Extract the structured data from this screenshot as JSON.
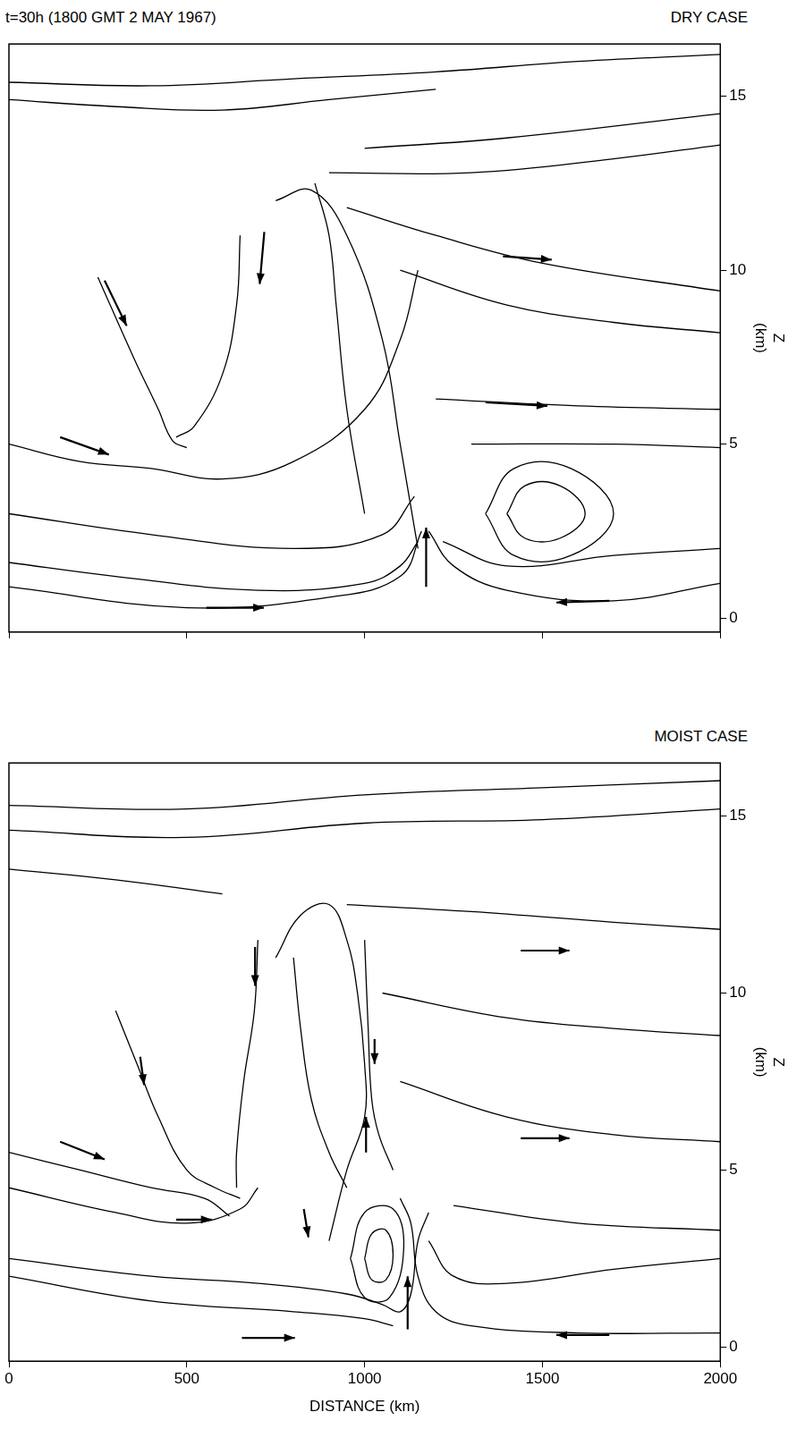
{
  "title": "t=30h  (1800 GMT  2 MAY 1967)",
  "chart_data": [
    {
      "type": "line",
      "title": "DRY CASE",
      "y_label": "Z (km)",
      "xlim": [
        0,
        2000
      ],
      "ylim": [
        -0.4,
        16.5
      ],
      "xticks": [
        0,
        500,
        1000,
        1500,
        2000
      ],
      "yticks": [
        0,
        5,
        10,
        15
      ],
      "tick_labels": "y",
      "grid": false,
      "color": "#000000",
      "streamlines": [
        [
          [
            0,
            15.4
          ],
          [
            400,
            15.3
          ],
          [
            800,
            15.5
          ],
          [
            1200,
            15.7
          ],
          [
            1600,
            16
          ],
          [
            2000,
            16.2
          ]
        ],
        [
          [
            0,
            14.9
          ],
          [
            300,
            14.7
          ],
          [
            600,
            14.6
          ],
          [
            900,
            14.9
          ],
          [
            1200,
            15.2
          ]
        ],
        [
          [
            1000,
            13.5
          ],
          [
            1400,
            13.8
          ],
          [
            2000,
            14.5
          ]
        ],
        [
          [
            900,
            12.8
          ],
          [
            1300,
            12.8
          ],
          [
            1700,
            13.2
          ],
          [
            2000,
            13.6
          ]
        ],
        [
          [
            950,
            11.8
          ],
          [
            1200,
            11
          ],
          [
            1500,
            10.2
          ],
          [
            2000,
            9.4
          ]
        ],
        [
          [
            1100,
            10
          ],
          [
            1400,
            9
          ],
          [
            1700,
            8.5
          ],
          [
            2000,
            8.2
          ]
        ],
        [
          [
            1200,
            6.3
          ],
          [
            1600,
            6.1
          ],
          [
            2000,
            6
          ]
        ],
        [
          [
            1300,
            5
          ],
          [
            1700,
            5
          ],
          [
            2000,
            4.9
          ]
        ],
        [
          [
            0,
            0.9
          ],
          [
            500,
            0.3
          ],
          [
            900,
            0.6
          ],
          [
            1100,
            1.2
          ],
          [
            1160,
            2.5
          ]
        ],
        [
          [
            0,
            1.6
          ],
          [
            300,
            1.2
          ],
          [
            700,
            0.8
          ],
          [
            1000,
            1
          ],
          [
            1100,
            1.5
          ],
          [
            1150,
            2.2
          ]
        ],
        [
          [
            0,
            3
          ],
          [
            400,
            2.4
          ],
          [
            800,
            2
          ],
          [
            1050,
            2.4
          ],
          [
            1140,
            3.5
          ]
        ],
        [
          [
            0,
            5
          ],
          [
            200,
            4.5
          ],
          [
            400,
            4.3
          ],
          [
            600,
            4
          ],
          [
            800,
            4.5
          ],
          [
            1000,
            6
          ],
          [
            1100,
            8
          ],
          [
            1150,
            10
          ]
        ],
        [
          [
            250,
            9.8
          ],
          [
            350,
            7.5
          ],
          [
            420,
            6
          ],
          [
            460,
            5.1
          ],
          [
            500,
            4.9
          ]
        ],
        [
          [
            650,
            11
          ],
          [
            640,
            9
          ],
          [
            600,
            7
          ],
          [
            520,
            5.5
          ],
          [
            470,
            5.2
          ]
        ],
        [
          [
            1150,
            2
          ],
          [
            1100,
            5
          ],
          [
            1050,
            8
          ],
          [
            950,
            11
          ],
          [
            850,
            12.3
          ],
          [
            750,
            12
          ]
        ],
        [
          [
            1000,
            3
          ],
          [
            950,
            6
          ],
          [
            920,
            9
          ],
          [
            900,
            11
          ],
          [
            860,
            12.5
          ]
        ],
        [
          [
            2000,
            1
          ],
          [
            1700,
            0.5
          ],
          [
            1400,
            0.8
          ],
          [
            1250,
            1.5
          ],
          [
            1180,
            2.5
          ]
        ],
        [
          [
            2000,
            2
          ],
          [
            1700,
            1.8
          ],
          [
            1400,
            1.5
          ],
          [
            1220,
            2.2
          ]
        ],
        [
          [
            1400,
            3
          ],
          [
            1450,
            3.8
          ],
          [
            1550,
            3.8
          ],
          [
            1620,
            3
          ],
          [
            1550,
            2.3
          ],
          [
            1450,
            2.3
          ],
          [
            1400,
            3
          ]
        ],
        [
          [
            1340,
            3
          ],
          [
            1420,
            4.3
          ],
          [
            1580,
            4.3
          ],
          [
            1700,
            3
          ],
          [
            1580,
            1.8
          ],
          [
            1420,
            1.8
          ],
          [
            1340,
            3
          ]
        ]
      ],
      "arrows": [
        {
          "from": [
            269,
            9.7
          ],
          "to": [
            331,
            8.4
          ]
        },
        {
          "from": [
            718,
            11.1
          ],
          "to": [
            705,
            9.6
          ]
        },
        {
          "from": [
            144,
            5.2
          ],
          "to": [
            281,
            4.7
          ]
        },
        {
          "from": [
            555,
            0.3
          ],
          "to": [
            717,
            0.3
          ]
        },
        {
          "from": [
            1173,
            0.9
          ],
          "to": [
            1173,
            2.6
          ]
        },
        {
          "from": [
            1688,
            0.5
          ],
          "to": [
            1539,
            0.45
          ]
        },
        {
          "from": [
            1389,
            10.4
          ],
          "to": [
            1526,
            10.3
          ]
        },
        {
          "from": [
            1340,
            6.2
          ],
          "to": [
            1514,
            6.1
          ]
        }
      ]
    },
    {
      "type": "line",
      "title": "MOIST CASE",
      "y_label": "Z (km)",
      "x_label": "DISTANCE (km)",
      "xlim": [
        0,
        2000
      ],
      "ylim": [
        -0.4,
        16.5
      ],
      "xticks": [
        0,
        500,
        1000,
        1500,
        2000
      ],
      "yticks": [
        0,
        5,
        10,
        15
      ],
      "tick_labels": true,
      "grid": false,
      "color": "#000000",
      "streamlines": [
        [
          [
            0,
            15.3
          ],
          [
            500,
            15.2
          ],
          [
            1000,
            15.6
          ],
          [
            1500,
            15.8
          ],
          [
            2000,
            16
          ]
        ],
        [
          [
            0,
            14.6
          ],
          [
            500,
            14.4
          ],
          [
            1000,
            14.8
          ],
          [
            1500,
            14.9
          ],
          [
            2000,
            15.2
          ]
        ],
        [
          [
            0,
            13.5
          ],
          [
            300,
            13.2
          ],
          [
            600,
            12.8
          ]
        ],
        [
          [
            950,
            12.5
          ],
          [
            1300,
            12.3
          ],
          [
            1700,
            12
          ],
          [
            2000,
            11.8
          ]
        ],
        [
          [
            1050,
            10
          ],
          [
            1400,
            9.3
          ],
          [
            1700,
            9
          ],
          [
            2000,
            8.8
          ]
        ],
        [
          [
            1100,
            7.5
          ],
          [
            1400,
            6.5
          ],
          [
            1700,
            6
          ],
          [
            2000,
            5.8
          ]
        ],
        [
          [
            1250,
            4
          ],
          [
            1600,
            3.5
          ],
          [
            2000,
            3.3
          ]
        ],
        [
          [
            0,
            5.5
          ],
          [
            200,
            5
          ],
          [
            400,
            4.5
          ],
          [
            550,
            4.2
          ],
          [
            620,
            3.7
          ]
        ],
        [
          [
            0,
            4.5
          ],
          [
            300,
            3.8
          ],
          [
            500,
            3.5
          ],
          [
            650,
            3.9
          ],
          [
            700,
            4.5
          ]
        ],
        [
          [
            0,
            2.5
          ],
          [
            400,
            2
          ],
          [
            700,
            1.8
          ],
          [
            950,
            1.5
          ],
          [
            1050,
            1.2
          ],
          [
            1100,
            1
          ],
          [
            1130,
            1.5
          ],
          [
            1150,
            3
          ],
          [
            1180,
            3.8
          ]
        ],
        [
          [
            0,
            2
          ],
          [
            400,
            1.3
          ],
          [
            800,
            1
          ],
          [
            1000,
            0.8
          ],
          [
            1080,
            0.6
          ]
        ],
        [
          [
            2000,
            0.4
          ],
          [
            1600,
            0.4
          ],
          [
            1300,
            0.6
          ],
          [
            1200,
            1
          ],
          [
            1150,
            2
          ],
          [
            1130,
            3.5
          ],
          [
            1100,
            4.2
          ]
        ],
        [
          [
            2000,
            2.5
          ],
          [
            1700,
            2.2
          ],
          [
            1400,
            1.8
          ],
          [
            1250,
            2
          ],
          [
            1180,
            3
          ]
        ],
        [
          [
            1000,
            2.5
          ],
          [
            1020,
            3.2
          ],
          [
            1060,
            3.3
          ],
          [
            1080,
            2.6
          ],
          [
            1060,
            1.9
          ],
          [
            1020,
            1.9
          ],
          [
            1000,
            2.5
          ]
        ],
        [
          [
            960,
            2.5
          ],
          [
            1000,
            3.8
          ],
          [
            1080,
            3.9
          ],
          [
            1110,
            2.8
          ],
          [
            1070,
            1.4
          ],
          [
            1000,
            1.4
          ],
          [
            960,
            2.5
          ]
        ],
        [
          [
            1000,
            11.5
          ],
          [
            1010,
            9
          ],
          [
            1020,
            7
          ],
          [
            1040,
            6
          ],
          [
            1080,
            5
          ]
        ],
        [
          [
            900,
            3
          ],
          [
            950,
            5
          ],
          [
            1000,
            6.5
          ],
          [
            1000,
            8
          ],
          [
            980,
            10
          ],
          [
            950,
            11.5
          ],
          [
            900,
            12.5
          ],
          [
            820,
            12.2
          ],
          [
            750,
            11
          ]
        ],
        [
          [
            300,
            9.5
          ],
          [
            360,
            8
          ],
          [
            420,
            6.5
          ],
          [
            500,
            5
          ],
          [
            580,
            4.5
          ],
          [
            650,
            4.2
          ]
        ],
        [
          [
            700,
            11.5
          ],
          [
            690,
            9.5
          ],
          [
            660,
            7.5
          ],
          [
            640,
            5.5
          ],
          [
            640,
            4.5
          ]
        ],
        [
          [
            800,
            11
          ],
          [
            820,
            9
          ],
          [
            850,
            7
          ],
          [
            900,
            5.5
          ],
          [
            950,
            4.5
          ]
        ]
      ],
      "arrows": [
        {
          "from": [
            144,
            5.8
          ],
          "to": [
            269,
            5.3
          ]
        },
        {
          "from": [
            470,
            3.6
          ],
          "to": [
            570,
            3.6
          ]
        },
        {
          "from": [
            369,
            8.2
          ],
          "to": [
            380,
            7.4
          ]
        },
        {
          "from": [
            692,
            11.3
          ],
          "to": [
            692,
            10.2
          ]
        },
        {
          "from": [
            1028,
            8.7
          ],
          "to": [
            1028,
            8.0
          ]
        },
        {
          "from": [
            1004,
            5.5
          ],
          "to": [
            1004,
            6.5
          ]
        },
        {
          "from": [
            829,
            3.9
          ],
          "to": [
            842,
            3.1
          ]
        },
        {
          "from": [
            1121,
            0.5
          ],
          "to": [
            1121,
            2.0
          ]
        },
        {
          "from": [
            655,
            0.26
          ],
          "to": [
            804,
            0.26
          ]
        },
        {
          "from": [
            1688,
            0.34
          ],
          "to": [
            1539,
            0.34
          ]
        },
        {
          "from": [
            1439,
            11.2
          ],
          "to": [
            1576,
            11.2
          ]
        },
        {
          "from": [
            1439,
            5.9
          ],
          "to": [
            1576,
            5.9
          ]
        }
      ]
    }
  ]
}
